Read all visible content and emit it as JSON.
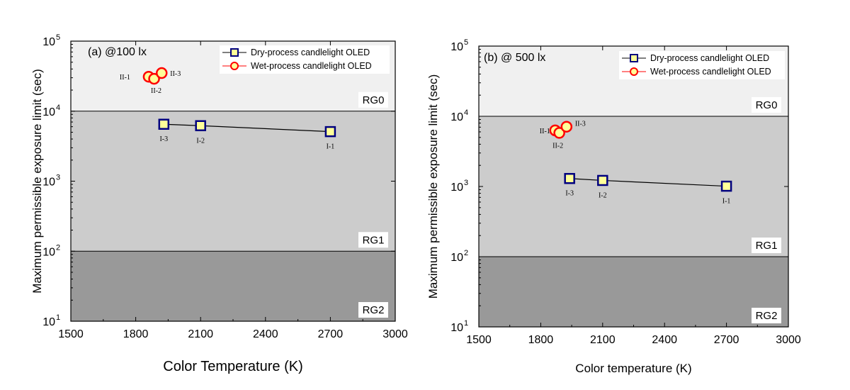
{
  "chart_data": [
    {
      "type": "scatter",
      "panel_label": "(a) @100 lx",
      "xlabel": "Color Temperature (K)",
      "ylabel": "Maximum permissible exposure limit (sec)",
      "xlim": [
        1500,
        3000
      ],
      "ylim": [
        10,
        100000
      ],
      "yscale": "log",
      "x_ticks": [
        "1500",
        "1800",
        "2100",
        "2400",
        "2700",
        "3000"
      ],
      "y_tick_exponents": [
        "1",
        "2",
        "3",
        "4",
        "5"
      ],
      "y_tick_base": "10",
      "regions": [
        {
          "name": "RG0",
          "from": 10000,
          "to": 100000,
          "color": "#f0f0f0"
        },
        {
          "name": "RG1",
          "from": 100,
          "to": 10000,
          "color": "#cccccc"
        },
        {
          "name": "RG2",
          "from": 10,
          "to": 100,
          "color": "#999999"
        }
      ],
      "legend": {
        "placement": "top-right"
      },
      "series": [
        {
          "name": "Dry-process candlelight OLED",
          "marker": "square",
          "connected": true,
          "points": [
            {
              "label": "I-3",
              "x": 1930,
              "y": 6500
            },
            {
              "label": "I-2",
              "x": 2100,
              "y": 6200
            },
            {
              "label": "I-1",
              "x": 2700,
              "y": 5100
            }
          ]
        },
        {
          "name": "Wet-process candlelight OLED",
          "marker": "circle",
          "connected": false,
          "points": [
            {
              "label": "II-1",
              "x": 1860,
              "y": 31000
            },
            {
              "label": "II-2",
              "x": 1885,
              "y": 29000
            },
            {
              "label": "II-3",
              "x": 1920,
              "y": 35000
            }
          ]
        }
      ]
    },
    {
      "type": "scatter",
      "panel_label": "(b) @ 500 lx",
      "xlabel": "Color temperature (K)",
      "ylabel": "Maximum permissible exposure limit (sec)",
      "xlim": [
        1500,
        3000
      ],
      "ylim": [
        10,
        100000
      ],
      "yscale": "log",
      "x_ticks": [
        "1500",
        "1800",
        "2100",
        "2400",
        "2700",
        "3000"
      ],
      "y_tick_exponents": [
        "1",
        "2",
        "3",
        "4",
        "5"
      ],
      "y_tick_base": "10",
      "regions": [
        {
          "name": "RG0",
          "from": 10000,
          "to": 100000,
          "color": "#f0f0f0"
        },
        {
          "name": "RG1",
          "from": 100,
          "to": 10000,
          "color": "#cccccc"
        },
        {
          "name": "RG2",
          "from": 10,
          "to": 100,
          "color": "#999999"
        }
      ],
      "legend": {
        "placement": "top-right"
      },
      "series": [
        {
          "name": "Dry-process  candlelight OLED",
          "marker": "square",
          "connected": true,
          "points": [
            {
              "label": "I-3",
              "x": 1940,
              "y": 1300
            },
            {
              "label": "I-2",
              "x": 2100,
              "y": 1220
            },
            {
              "label": "I-1",
              "x": 2700,
              "y": 1010
            }
          ]
        },
        {
          "name": "Wet-process  candlelight OLED",
          "marker": "circle",
          "connected": false,
          "points": [
            {
              "label": "II-1",
              "x": 1870,
              "y": 6300
            },
            {
              "label": "II-2",
              "x": 1890,
              "y": 5800
            },
            {
              "label": "II-3",
              "x": 1925,
              "y": 7100
            }
          ]
        }
      ]
    }
  ],
  "colors": {
    "square_fill": "#ffff99",
    "square_stroke": "#00007f",
    "circle_fill": "#ffff99",
    "circle_stroke": "#ff0000"
  }
}
